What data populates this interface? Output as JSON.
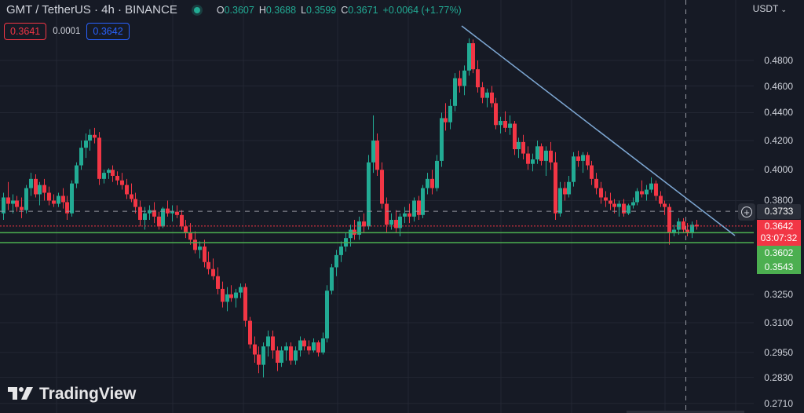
{
  "header": {
    "symbol": "GMT / TetherUS · 4h · BINANCE",
    "ohlc": {
      "o_label": "O",
      "o": "0.3607",
      "h_label": "H",
      "h": "0.3688",
      "l_label": "L",
      "l": "0.3599",
      "c_label": "C",
      "c": "0.3671",
      "change": "+0.0064 (+1.77%)"
    },
    "sell_price": "0.3641",
    "spread": "0.0001",
    "buy_price": "0.3642"
  },
  "currency": "USDT",
  "currency_icon": "chevron-down-icon",
  "logo_text": "TradingView",
  "colors": {
    "background": "#161a25",
    "grid": "#232733",
    "up": "#22ab94",
    "down": "#f23645",
    "trendline": "#7ea8d4",
    "support": "#4caf50",
    "last_price": "#f23645"
  },
  "tags": {
    "crosshair_price": "0.3733",
    "last_price": "0.3642",
    "countdown": "03:07:32",
    "level1": "0.3602",
    "level2": "0.3543"
  },
  "chart_data": {
    "type": "candlestick",
    "title": "GMT / TetherUS · 4h · BINANCE",
    "xlabel": "",
    "ylabel": "USDT",
    "yscale": "log",
    "ylim": [
      0.265,
      0.52
    ],
    "y_ticks": [
      0.48,
      0.46,
      0.44,
      0.42,
      0.4,
      0.38,
      0.325,
      0.31,
      0.295,
      0.283,
      0.271
    ],
    "y_tick_labels": [
      "0.4800",
      "0.4600",
      "0.4400",
      "0.4200",
      "0.4000",
      "0.3800",
      "0.3250",
      "0.3100",
      "0.2950",
      "0.2830",
      "0.2710"
    ],
    "grid": true,
    "horizontal_lines": [
      {
        "name": "crosshair",
        "value": 0.3733,
        "style": "dashed"
      },
      {
        "name": "last-price",
        "value": 0.3642,
        "style": "dotted"
      },
      {
        "name": "support-1",
        "value": 0.3602,
        "style": "solid"
      },
      {
        "name": "support-2",
        "value": 0.3543,
        "style": "solid"
      }
    ],
    "trendline": {
      "from": [
        588,
        0.505
      ],
      "to": [
        936,
        0.361
      ]
    },
    "candles": [
      [
        0.372,
        0.385,
        0.368,
        0.382
      ],
      [
        0.382,
        0.392,
        0.374,
        0.378
      ],
      [
        0.378,
        0.384,
        0.372,
        0.38
      ],
      [
        0.38,
        0.383,
        0.373,
        0.376
      ],
      [
        0.376,
        0.382,
        0.369,
        0.374
      ],
      [
        0.374,
        0.39,
        0.372,
        0.388
      ],
      [
        0.388,
        0.398,
        0.383,
        0.394
      ],
      [
        0.394,
        0.397,
        0.382,
        0.384
      ],
      [
        0.384,
        0.392,
        0.377,
        0.39
      ],
      [
        0.39,
        0.394,
        0.38,
        0.385
      ],
      [
        0.385,
        0.389,
        0.377,
        0.38
      ],
      [
        0.38,
        0.384,
        0.376,
        0.378
      ],
      [
        0.378,
        0.385,
        0.376,
        0.383
      ],
      [
        0.383,
        0.388,
        0.375,
        0.379
      ],
      [
        0.379,
        0.383,
        0.368,
        0.372
      ],
      [
        0.372,
        0.393,
        0.37,
        0.391
      ],
      [
        0.391,
        0.405,
        0.388,
        0.403
      ],
      [
        0.403,
        0.42,
        0.4,
        0.415
      ],
      [
        0.415,
        0.425,
        0.408,
        0.42
      ],
      [
        0.42,
        0.428,
        0.413,
        0.424
      ],
      [
        0.424,
        0.429,
        0.418,
        0.422
      ],
      [
        0.422,
        0.426,
        0.39,
        0.394
      ],
      [
        0.394,
        0.4,
        0.391,
        0.398
      ],
      [
        0.398,
        0.401,
        0.394,
        0.4
      ],
      [
        0.4,
        0.403,
        0.392,
        0.396
      ],
      [
        0.396,
        0.399,
        0.39,
        0.393
      ],
      [
        0.393,
        0.398,
        0.387,
        0.39
      ],
      [
        0.39,
        0.394,
        0.381,
        0.384
      ],
      [
        0.384,
        0.391,
        0.379,
        0.381
      ],
      [
        0.381,
        0.385,
        0.372,
        0.376
      ],
      [
        0.376,
        0.38,
        0.364,
        0.368
      ],
      [
        0.368,
        0.376,
        0.362,
        0.372
      ],
      [
        0.372,
        0.377,
        0.368,
        0.374
      ],
      [
        0.374,
        0.379,
        0.366,
        0.37
      ],
      [
        0.37,
        0.373,
        0.362,
        0.364
      ],
      [
        0.364,
        0.376,
        0.363,
        0.375
      ],
      [
        0.375,
        0.38,
        0.37,
        0.372
      ],
      [
        0.372,
        0.377,
        0.367,
        0.373
      ],
      [
        0.373,
        0.377,
        0.369,
        0.371
      ],
      [
        0.371,
        0.374,
        0.362,
        0.364
      ],
      [
        0.364,
        0.368,
        0.357,
        0.36
      ],
      [
        0.36,
        0.366,
        0.353,
        0.356
      ],
      [
        0.356,
        0.361,
        0.348,
        0.35
      ],
      [
        0.35,
        0.355,
        0.345,
        0.352
      ],
      [
        0.352,
        0.356,
        0.34,
        0.343
      ],
      [
        0.343,
        0.349,
        0.336,
        0.339
      ],
      [
        0.339,
        0.345,
        0.333,
        0.335
      ],
      [
        0.335,
        0.34,
        0.325,
        0.328
      ],
      [
        0.328,
        0.332,
        0.318,
        0.321
      ],
      [
        0.321,
        0.329,
        0.316,
        0.325
      ],
      [
        0.325,
        0.33,
        0.321,
        0.323
      ],
      [
        0.323,
        0.328,
        0.318,
        0.326
      ],
      [
        0.326,
        0.331,
        0.323,
        0.329
      ],
      [
        0.329,
        0.331,
        0.308,
        0.311
      ],
      [
        0.311,
        0.313,
        0.297,
        0.299
      ],
      [
        0.299,
        0.303,
        0.29,
        0.294
      ],
      [
        0.294,
        0.298,
        0.285,
        0.289
      ],
      [
        0.289,
        0.3,
        0.283,
        0.298
      ],
      [
        0.298,
        0.306,
        0.293,
        0.303
      ],
      [
        0.303,
        0.306,
        0.292,
        0.296
      ],
      [
        0.296,
        0.298,
        0.286,
        0.29
      ],
      [
        0.29,
        0.298,
        0.288,
        0.296
      ],
      [
        0.296,
        0.3,
        0.291,
        0.298
      ],
      [
        0.298,
        0.3,
        0.289,
        0.291
      ],
      [
        0.291,
        0.298,
        0.289,
        0.296
      ],
      [
        0.296,
        0.303,
        0.293,
        0.301
      ],
      [
        0.301,
        0.302,
        0.296,
        0.298
      ],
      [
        0.298,
        0.301,
        0.294,
        0.296
      ],
      [
        0.296,
        0.302,
        0.295,
        0.3
      ],
      [
        0.3,
        0.301,
        0.293,
        0.295
      ],
      [
        0.295,
        0.305,
        0.294,
        0.302
      ],
      [
        0.302,
        0.33,
        0.3,
        0.327
      ],
      [
        0.327,
        0.342,
        0.325,
        0.34
      ],
      [
        0.34,
        0.35,
        0.335,
        0.347
      ],
      [
        0.347,
        0.355,
        0.343,
        0.352
      ],
      [
        0.352,
        0.36,
        0.349,
        0.357
      ],
      [
        0.357,
        0.365,
        0.352,
        0.362
      ],
      [
        0.362,
        0.368,
        0.356,
        0.359
      ],
      [
        0.359,
        0.37,
        0.356,
        0.367
      ],
      [
        0.367,
        0.372,
        0.36,
        0.364
      ],
      [
        0.364,
        0.41,
        0.362,
        0.405
      ],
      [
        0.405,
        0.438,
        0.398,
        0.42
      ],
      [
        0.42,
        0.425,
        0.396,
        0.4
      ],
      [
        0.4,
        0.405,
        0.375,
        0.378
      ],
      [
        0.378,
        0.382,
        0.36,
        0.365
      ],
      [
        0.365,
        0.372,
        0.362,
        0.368
      ],
      [
        0.368,
        0.374,
        0.36,
        0.363
      ],
      [
        0.363,
        0.372,
        0.358,
        0.37
      ],
      [
        0.37,
        0.376,
        0.366,
        0.372
      ],
      [
        0.372,
        0.378,
        0.366,
        0.37
      ],
      [
        0.37,
        0.382,
        0.367,
        0.38
      ],
      [
        0.38,
        0.383,
        0.368,
        0.371
      ],
      [
        0.371,
        0.39,
        0.369,
        0.388
      ],
      [
        0.388,
        0.398,
        0.384,
        0.394
      ],
      [
        0.394,
        0.4,
        0.384,
        0.388
      ],
      [
        0.388,
        0.41,
        0.386,
        0.406
      ],
      [
        0.406,
        0.44,
        0.402,
        0.436
      ],
      [
        0.436,
        0.447,
        0.427,
        0.433
      ],
      [
        0.433,
        0.45,
        0.428,
        0.445
      ],
      [
        0.445,
        0.47,
        0.441,
        0.466
      ],
      [
        0.466,
        0.472,
        0.455,
        0.46
      ],
      [
        0.46,
        0.476,
        0.453,
        0.472
      ],
      [
        0.472,
        0.498,
        0.468,
        0.494
      ],
      [
        0.494,
        0.497,
        0.47,
        0.473
      ],
      [
        0.473,
        0.48,
        0.455,
        0.459
      ],
      [
        0.459,
        0.463,
        0.447,
        0.451
      ],
      [
        0.451,
        0.458,
        0.444,
        0.455
      ],
      [
        0.455,
        0.46,
        0.444,
        0.447
      ],
      [
        0.447,
        0.451,
        0.428,
        0.431
      ],
      [
        0.431,
        0.437,
        0.425,
        0.434
      ],
      [
        0.434,
        0.441,
        0.426,
        0.429
      ],
      [
        0.429,
        0.438,
        0.424,
        0.432
      ],
      [
        0.432,
        0.434,
        0.41,
        0.414
      ],
      [
        0.414,
        0.422,
        0.408,
        0.419
      ],
      [
        0.419,
        0.424,
        0.407,
        0.411
      ],
      [
        0.411,
        0.416,
        0.4,
        0.404
      ],
      [
        0.404,
        0.411,
        0.399,
        0.407
      ],
      [
        0.407,
        0.42,
        0.404,
        0.416
      ],
      [
        0.416,
        0.418,
        0.403,
        0.406
      ],
      [
        0.406,
        0.416,
        0.396,
        0.413
      ],
      [
        0.413,
        0.419,
        0.4,
        0.405
      ],
      [
        0.405,
        0.412,
        0.368,
        0.372
      ],
      [
        0.372,
        0.392,
        0.37,
        0.388
      ],
      [
        0.388,
        0.392,
        0.38,
        0.384
      ],
      [
        0.384,
        0.396,
        0.382,
        0.392
      ],
      [
        0.392,
        0.412,
        0.389,
        0.409
      ],
      [
        0.409,
        0.413,
        0.402,
        0.406
      ],
      [
        0.406,
        0.412,
        0.398,
        0.41
      ],
      [
        0.41,
        0.412,
        0.4,
        0.403
      ],
      [
        0.403,
        0.406,
        0.39,
        0.394
      ],
      [
        0.394,
        0.398,
        0.384,
        0.388
      ],
      [
        0.388,
        0.392,
        0.378,
        0.382
      ],
      [
        0.382,
        0.386,
        0.376,
        0.38
      ],
      [
        0.38,
        0.385,
        0.374,
        0.378
      ],
      [
        0.378,
        0.381,
        0.372,
        0.376
      ],
      [
        0.376,
        0.38,
        0.37,
        0.378
      ],
      [
        0.378,
        0.381,
        0.37,
        0.372
      ],
      [
        0.372,
        0.378,
        0.371,
        0.377
      ],
      [
        0.377,
        0.382,
        0.375,
        0.379
      ],
      [
        0.379,
        0.388,
        0.377,
        0.386
      ],
      [
        0.386,
        0.393,
        0.382,
        0.384
      ],
      [
        0.384,
        0.39,
        0.38,
        0.387
      ],
      [
        0.387,
        0.395,
        0.385,
        0.391
      ],
      [
        0.391,
        0.393,
        0.38,
        0.383
      ],
      [
        0.383,
        0.386,
        0.376,
        0.378
      ],
      [
        0.378,
        0.38,
        0.371,
        0.376
      ],
      [
        0.376,
        0.378,
        0.353,
        0.36
      ],
      [
        0.36,
        0.365,
        0.358,
        0.362
      ],
      [
        0.362,
        0.369,
        0.359,
        0.367
      ],
      [
        0.367,
        0.369,
        0.36,
        0.362
      ],
      [
        0.362,
        0.366,
        0.358,
        0.36
      ],
      [
        0.36,
        0.367,
        0.357,
        0.365
      ],
      [
        0.365,
        0.368,
        0.362,
        0.364
      ]
    ]
  }
}
